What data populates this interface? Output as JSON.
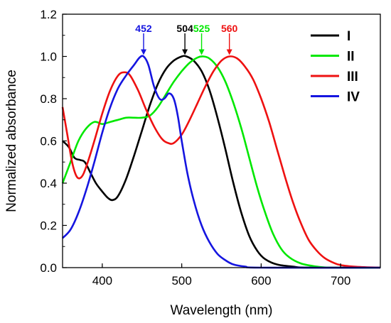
{
  "chart_data": {
    "type": "line",
    "title": "",
    "xlabel": "Wavelength (nm)",
    "ylabel": "Normalized absorbance",
    "xlim": [
      350,
      750
    ],
    "ylim": [
      0.0,
      1.2
    ],
    "xticks": [
      400,
      500,
      600,
      700
    ],
    "yticks": [
      0.0,
      0.2,
      0.4,
      0.6,
      0.8,
      1.0,
      1.2
    ],
    "grid": false,
    "legend_position": "top-right",
    "series": [
      {
        "name": "I",
        "color": "#000000",
        "peak_label": "504",
        "peak_x": 504,
        "points": [
          [
            350,
            0.6
          ],
          [
            358,
            0.57
          ],
          [
            365,
            0.52
          ],
          [
            372,
            0.51
          ],
          [
            378,
            0.5
          ],
          [
            385,
            0.45
          ],
          [
            392,
            0.4
          ],
          [
            400,
            0.36
          ],
          [
            407,
            0.33
          ],
          [
            413,
            0.32
          ],
          [
            420,
            0.34
          ],
          [
            430,
            0.42
          ],
          [
            440,
            0.53
          ],
          [
            450,
            0.65
          ],
          [
            460,
            0.77
          ],
          [
            470,
            0.87
          ],
          [
            480,
            0.94
          ],
          [
            490,
            0.98
          ],
          [
            500,
            1.0
          ],
          [
            506,
            1.0
          ],
          [
            515,
            0.98
          ],
          [
            525,
            0.93
          ],
          [
            535,
            0.84
          ],
          [
            545,
            0.71
          ],
          [
            555,
            0.56
          ],
          [
            565,
            0.4
          ],
          [
            575,
            0.26
          ],
          [
            585,
            0.15
          ],
          [
            595,
            0.08
          ],
          [
            605,
            0.04
          ],
          [
            620,
            0.015
          ],
          [
            640,
            0.005
          ],
          [
            660,
            0.0
          ],
          [
            750,
            0.0
          ]
        ]
      },
      {
        "name": "II",
        "color": "#00e800",
        "peak_label": "525",
        "peak_x": 525,
        "points": [
          [
            350,
            0.4
          ],
          [
            360,
            0.5
          ],
          [
            370,
            0.6
          ],
          [
            380,
            0.66
          ],
          [
            390,
            0.69
          ],
          [
            400,
            0.68
          ],
          [
            410,
            0.69
          ],
          [
            420,
            0.7
          ],
          [
            430,
            0.71
          ],
          [
            440,
            0.71
          ],
          [
            450,
            0.71
          ],
          [
            460,
            0.72
          ],
          [
            470,
            0.76
          ],
          [
            480,
            0.82
          ],
          [
            490,
            0.88
          ],
          [
            500,
            0.93
          ],
          [
            510,
            0.97
          ],
          [
            520,
            0.995
          ],
          [
            527,
            1.0
          ],
          [
            535,
            0.99
          ],
          [
            545,
            0.95
          ],
          [
            555,
            0.88
          ],
          [
            565,
            0.78
          ],
          [
            575,
            0.66
          ],
          [
            585,
            0.52
          ],
          [
            595,
            0.38
          ],
          [
            605,
            0.26
          ],
          [
            615,
            0.16
          ],
          [
            625,
            0.09
          ],
          [
            635,
            0.05
          ],
          [
            650,
            0.02
          ],
          [
            670,
            0.005
          ],
          [
            690,
            0.0
          ],
          [
            750,
            0.0
          ]
        ]
      },
      {
        "name": "III",
        "color": "#ee1111",
        "peak_label": "560",
        "peak_x": 560,
        "points": [
          [
            350,
            0.76
          ],
          [
            356,
            0.63
          ],
          [
            362,
            0.5
          ],
          [
            368,
            0.43
          ],
          [
            374,
            0.43
          ],
          [
            380,
            0.48
          ],
          [
            390,
            0.6
          ],
          [
            400,
            0.73
          ],
          [
            410,
            0.84
          ],
          [
            420,
            0.91
          ],
          [
            428,
            0.925
          ],
          [
            435,
            0.91
          ],
          [
            445,
            0.84
          ],
          [
            455,
            0.75
          ],
          [
            465,
            0.67
          ],
          [
            475,
            0.61
          ],
          [
            483,
            0.59
          ],
          [
            490,
            0.59
          ],
          [
            500,
            0.63
          ],
          [
            510,
            0.7
          ],
          [
            520,
            0.78
          ],
          [
            530,
            0.86
          ],
          [
            540,
            0.93
          ],
          [
            550,
            0.98
          ],
          [
            560,
            1.0
          ],
          [
            570,
            0.99
          ],
          [
            580,
            0.95
          ],
          [
            590,
            0.89
          ],
          [
            600,
            0.8
          ],
          [
            610,
            0.69
          ],
          [
            620,
            0.56
          ],
          [
            630,
            0.43
          ],
          [
            640,
            0.31
          ],
          [
            650,
            0.21
          ],
          [
            660,
            0.13
          ],
          [
            670,
            0.08
          ],
          [
            680,
            0.045
          ],
          [
            690,
            0.025
          ],
          [
            700,
            0.012
          ],
          [
            720,
            0.004
          ],
          [
            750,
            0.0
          ]
        ]
      },
      {
        "name": "IV",
        "color": "#1515e0",
        "peak_label": "452",
        "peak_x": 452,
        "points": [
          [
            350,
            0.14
          ],
          [
            360,
            0.18
          ],
          [
            370,
            0.26
          ],
          [
            380,
            0.37
          ],
          [
            390,
            0.5
          ],
          [
            400,
            0.64
          ],
          [
            410,
            0.76
          ],
          [
            420,
            0.85
          ],
          [
            430,
            0.91
          ],
          [
            440,
            0.96
          ],
          [
            447,
            0.995
          ],
          [
            452,
            1.0
          ],
          [
            458,
            0.96
          ],
          [
            465,
            0.86
          ],
          [
            472,
            0.8
          ],
          [
            478,
            0.8
          ],
          [
            484,
            0.825
          ],
          [
            490,
            0.8
          ],
          [
            495,
            0.72
          ],
          [
            500,
            0.6
          ],
          [
            507,
            0.45
          ],
          [
            515,
            0.32
          ],
          [
            525,
            0.2
          ],
          [
            535,
            0.12
          ],
          [
            545,
            0.065
          ],
          [
            555,
            0.035
          ],
          [
            565,
            0.015
          ],
          [
            580,
            0.005
          ],
          [
            600,
            0.0
          ],
          [
            750,
            0.0
          ]
        ]
      }
    ]
  }
}
